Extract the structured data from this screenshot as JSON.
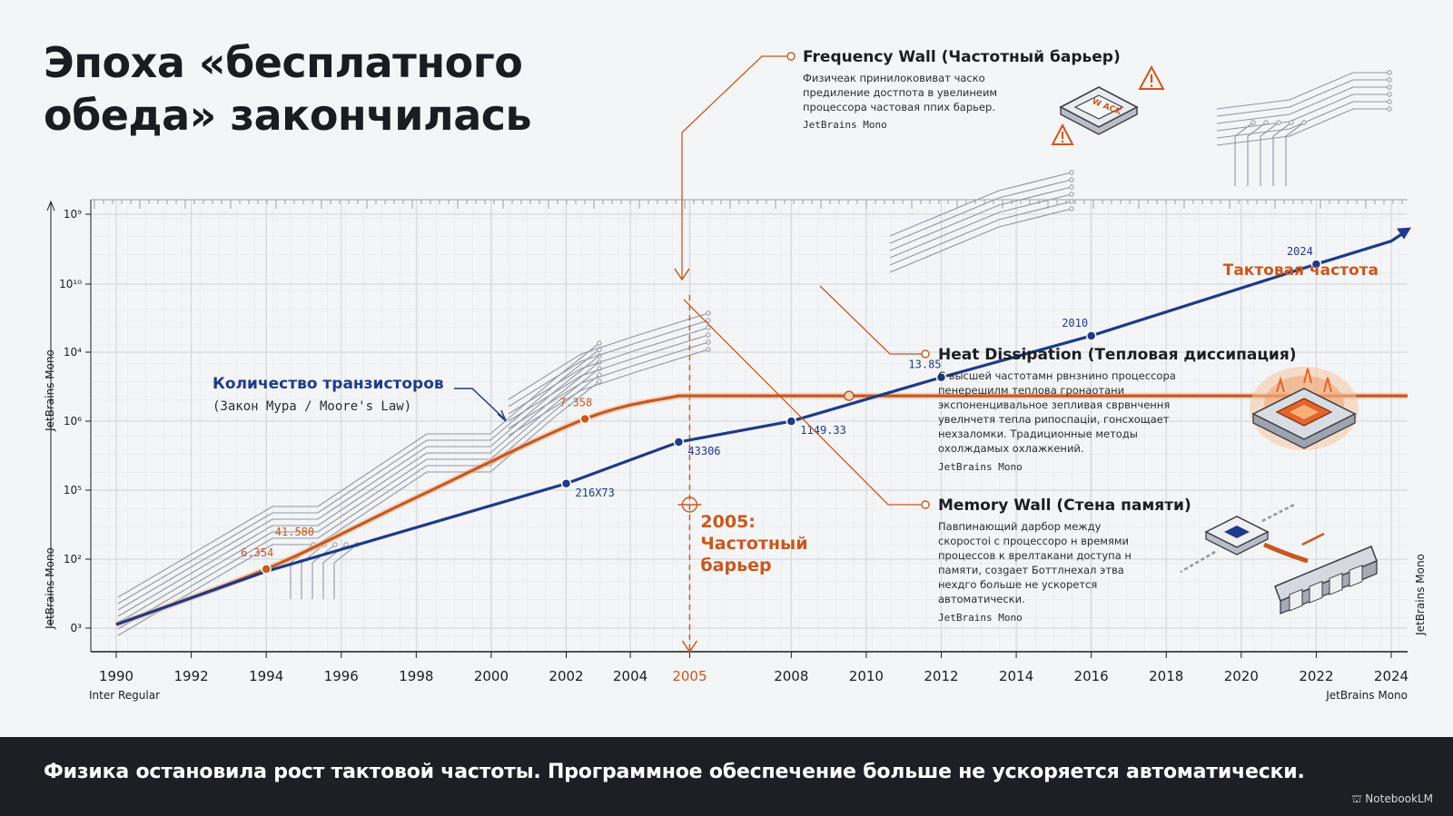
{
  "title_line1": "Эпоха «бесплатного",
  "title_line2": "обеда» закончилась",
  "footer_text": "Физика остановила рост тактовой частоты. Программное обеспечение больше не ускоряется автоматически.",
  "brand": "NotebookLM",
  "colors": {
    "transistors": "#1f3a8a",
    "clock": "#c8581e",
    "accent": "#c8581e",
    "dark": "#1e1f24"
  },
  "chart_data": {
    "type": "line",
    "x_ticks": [
      "1990",
      "1992",
      "1994",
      "1996",
      "1998",
      "2000",
      "2002",
      "2004",
      "2005",
      "2008",
      "2010",
      "2012",
      "2014",
      "2016",
      "2018",
      "2020",
      "2022",
      "2024"
    ],
    "y_ticks": [
      "10⁹",
      "10¹⁰",
      "10⁴",
      "10⁶",
      "10⁵",
      "10²",
      "0³"
    ],
    "y_axis_side_label": "JetBrains Mono",
    "x_left_note": "Inter Regular",
    "x_right_note": "JetBrains Mono",
    "series": [
      {
        "name": "Количество транзисторов",
        "subtitle": "(Закон Мура / Moore's Law)",
        "color": "#1f3a8a",
        "points": [
          {
            "x": 1990,
            "y": 0.0
          },
          {
            "x": 1994,
            "y": 1.15
          },
          {
            "x": 2002,
            "y": 3.05
          },
          {
            "x": 2005,
            "y": 3.95
          },
          {
            "x": 2008,
            "y": 4.4
          },
          {
            "x": 2012,
            "y": 5.35
          },
          {
            "x": 2016,
            "y": 6.25
          },
          {
            "x": 2022,
            "y": 7.8
          },
          {
            "x": 2024,
            "y": 8.3
          }
        ],
        "labels": [
          {
            "x": 2002,
            "y": 3.05,
            "text": "216X73"
          },
          {
            "x": 2005,
            "y": 3.95,
            "text": "43306"
          },
          {
            "x": 2008,
            "y": 4.4,
            "text": "1149.33"
          },
          {
            "x": 2012,
            "y": 5.35,
            "text": "13.85"
          },
          {
            "x": 2016,
            "y": 6.25,
            "text": "2010"
          },
          {
            "x": 2022,
            "y": 7.8,
            "text": "2024"
          }
        ]
      },
      {
        "name": "Тактовая частота",
        "color": "#c8581e",
        "points": [
          {
            "x": 1990,
            "y": 0.0
          },
          {
            "x": 1994,
            "y": 1.2
          },
          {
            "x": 1998,
            "y": 2.75
          },
          {
            "x": 2002.5,
            "y": 4.45
          },
          {
            "x": 2005,
            "y": 4.95
          },
          {
            "x": 2010,
            "y": 4.95
          },
          {
            "x": 2024,
            "y": 4.95
          }
        ],
        "labels": [
          {
            "x": 1994,
            "y": 1.2,
            "text": "6.354"
          },
          {
            "x": 1995,
            "y": 1.65,
            "text": "41.580"
          },
          {
            "x": 2002.5,
            "y": 4.45,
            "text": "7.358"
          }
        ]
      }
    ],
    "annotations": [
      {
        "name": "frequency-wall",
        "title": "Frequency Wall (Частотный барьер)",
        "body": [
          "Физичеак принилоковиват часко",
          "предиление достпота в увелинеим",
          "процессора частовая ппих барьер."
        ],
        "font_note": "JetBrains Mono"
      },
      {
        "name": "heat-dissipation",
        "title": "Heat Dissipation (Тепловая диссипация)",
        "body": [
          "С высшей частотамн рвнзнино процессора",
          "пенерешилм теплова гронаотани",
          "экспоненцивальное зепливая сврвнчення",
          "увелнчетя тепла рипоспаціи, гонсхощает",
          "нехзаломки. Традиционные методы",
          "охолждамых охлажкений."
        ],
        "font_note": "JetBrains Mono"
      },
      {
        "name": "memory-wall",
        "title": "Memory Wall (Стена памяти)",
        "body": [
          "Павпинающий дарбор между",
          "скоростоі с процессоро н времями",
          "процессов к врелтакани доступа н",
          "памяти, созgaeт Боттлнехал этва",
          "нехдго больше не ускорется",
          "автоматически."
        ],
        "font_note": "JetBrains Mono"
      }
    ],
    "wall_label": [
      "2005:",
      "Частотный",
      "барьер"
    ],
    "clock_label": "Тактовая частота",
    "chip_text": "W ACK"
  }
}
